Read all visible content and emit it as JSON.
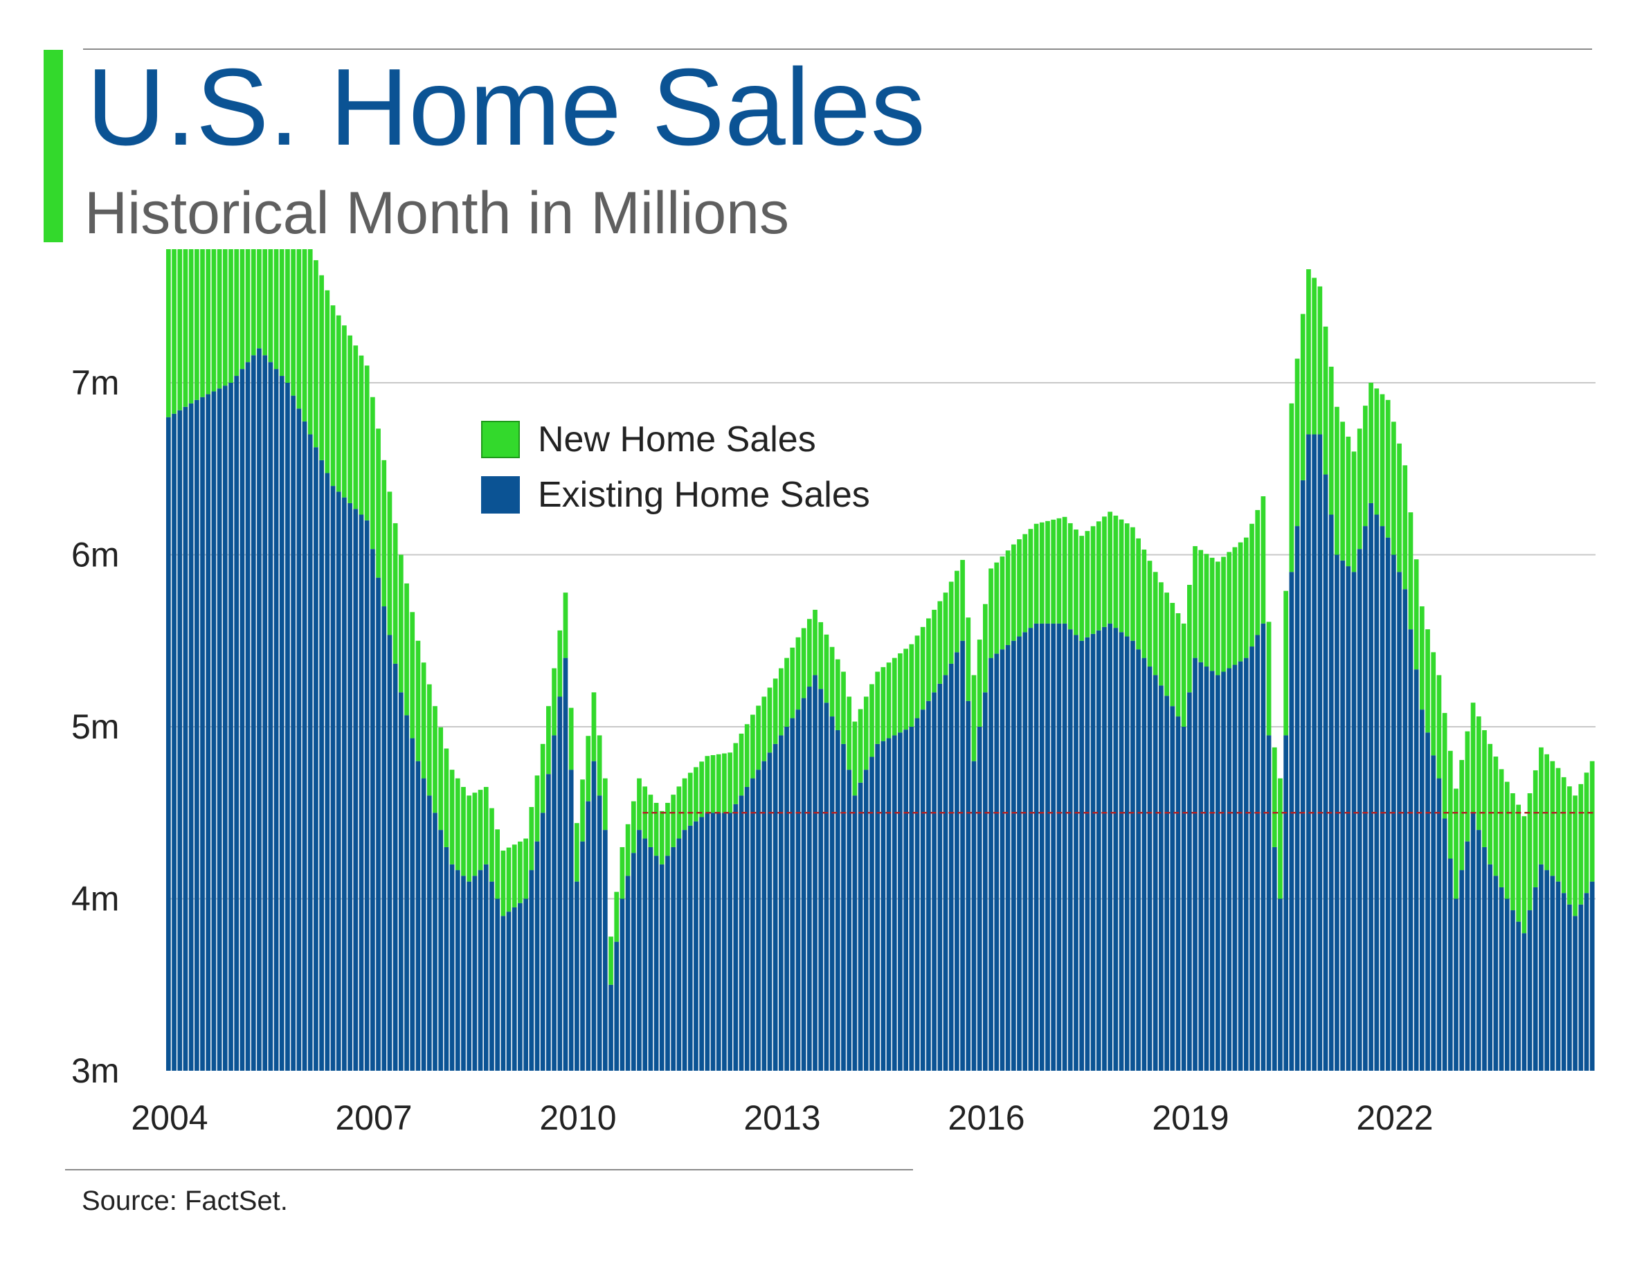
{
  "header": {
    "title": "U.S. Home Sales",
    "subtitle": "Historical Month in Millions"
  },
  "footer": {
    "source": "Source: FactSet."
  },
  "colors": {
    "new": "#33d92c",
    "existing": "#0b5394",
    "accent": "#33d92c",
    "grid": "#c8c8c8",
    "reference": "#b22222"
  },
  "chart_data": {
    "type": "bar",
    "stacked": true,
    "unit": "millions",
    "x_start": "2004-01",
    "x_end": "2024-12",
    "x_ticks": [
      "2004",
      "2007",
      "2010",
      "2013",
      "2016",
      "2019",
      "2022"
    ],
    "y_ticks": [
      "3m",
      "4m",
      "5m",
      "6m",
      "7m"
    ],
    "ylim": [
      3,
      7.8
    ],
    "legend": {
      "placement": "upper-center",
      "entries": [
        "New Home Sales",
        "Existing Home Sales"
      ]
    },
    "reference_line": {
      "value": 4.5,
      "from": "2011-01",
      "to": "2024-12"
    },
    "series_keypoints": {
      "existing": [
        [
          "2004-01",
          6.8
        ],
        [
          "2004-06",
          6.9
        ],
        [
          "2004-12",
          7.0
        ],
        [
          "2005-05",
          7.2
        ],
        [
          "2005-10",
          7.0
        ],
        [
          "2006-02",
          6.7
        ],
        [
          "2006-06",
          6.4
        ],
        [
          "2006-12",
          6.2
        ],
        [
          "2007-03",
          5.7
        ],
        [
          "2007-06",
          5.2
        ],
        [
          "2007-09",
          4.8
        ],
        [
          "2007-12",
          4.5
        ],
        [
          "2008-03",
          4.2
        ],
        [
          "2008-06",
          4.1
        ],
        [
          "2008-09",
          4.2
        ],
        [
          "2008-12",
          3.9
        ],
        [
          "2009-04",
          4.0
        ],
        [
          "2009-07",
          4.5
        ],
        [
          "2009-11",
          5.4
        ],
        [
          "2010-01",
          4.1
        ],
        [
          "2010-04",
          4.8
        ],
        [
          "2010-06",
          4.4
        ],
        [
          "2010-07",
          3.5
        ],
        [
          "2010-09",
          4.0
        ],
        [
          "2010-12",
          4.4
        ],
        [
          "2011-04",
          4.2
        ],
        [
          "2011-08",
          4.4
        ],
        [
          "2011-12",
          4.5
        ],
        [
          "2012-04",
          4.5
        ],
        [
          "2012-08",
          4.7
        ],
        [
          "2012-12",
          4.9
        ],
        [
          "2013-04",
          5.1
        ],
        [
          "2013-07",
          5.3
        ],
        [
          "2013-12",
          4.9
        ],
        [
          "2014-02",
          4.6
        ],
        [
          "2014-06",
          4.9
        ],
        [
          "2014-12",
          5.0
        ],
        [
          "2015-06",
          5.3
        ],
        [
          "2015-09",
          5.5
        ],
        [
          "2015-11",
          4.8
        ],
        [
          "2016-02",
          5.4
        ],
        [
          "2016-06",
          5.5
        ],
        [
          "2016-10",
          5.6
        ],
        [
          "2017-03",
          5.6
        ],
        [
          "2017-06",
          5.5
        ],
        [
          "2017-11",
          5.6
        ],
        [
          "2018-03",
          5.5
        ],
        [
          "2018-07",
          5.3
        ],
        [
          "2018-12",
          5.0
        ],
        [
          "2019-02",
          5.4
        ],
        [
          "2019-06",
          5.3
        ],
        [
          "2019-11",
          5.4
        ],
        [
          "2020-02",
          5.6
        ],
        [
          "2020-04",
          4.3
        ],
        [
          "2020-05",
          4.0
        ],
        [
          "2020-07",
          5.9
        ],
        [
          "2020-10",
          6.7
        ],
        [
          "2020-12",
          6.7
        ],
        [
          "2021-03",
          6.0
        ],
        [
          "2021-06",
          5.9
        ],
        [
          "2021-09",
          6.3
        ],
        [
          "2021-12",
          6.1
        ],
        [
          "2022-03",
          5.8
        ],
        [
          "2022-06",
          5.1
        ],
        [
          "2022-09",
          4.7
        ],
        [
          "2022-12",
          4.0
        ],
        [
          "2023-03",
          4.5
        ],
        [
          "2023-06",
          4.2
        ],
        [
          "2023-09",
          4.0
        ],
        [
          "2023-12",
          3.8
        ],
        [
          "2024-03",
          4.2
        ],
        [
          "2024-06",
          4.1
        ],
        [
          "2024-09",
          3.9
        ],
        [
          "2024-12",
          4.1
        ]
      ],
      "new": [
        [
          "2004-01",
          1.15
        ],
        [
          "2004-06",
          1.2
        ],
        [
          "2004-12",
          1.25
        ],
        [
          "2005-05",
          1.3
        ],
        [
          "2005-10",
          1.3
        ],
        [
          "2006-02",
          1.1
        ],
        [
          "2006-06",
          1.05
        ],
        [
          "2006-12",
          0.9
        ],
        [
          "2007-03",
          0.85
        ],
        [
          "2007-06",
          0.8
        ],
        [
          "2007-09",
          0.7
        ],
        [
          "2007-12",
          0.62
        ],
        [
          "2008-03",
          0.55
        ],
        [
          "2008-06",
          0.5
        ],
        [
          "2008-09",
          0.45
        ],
        [
          "2008-12",
          0.38
        ],
        [
          "2009-04",
          0.35
        ],
        [
          "2009-07",
          0.4
        ],
        [
          "2009-11",
          0.38
        ],
        [
          "2010-01",
          0.34
        ],
        [
          "2010-04",
          0.4
        ],
        [
          "2010-06",
          0.3
        ],
        [
          "2010-07",
          0.28
        ],
        [
          "2010-09",
          0.3
        ],
        [
          "2010-12",
          0.3
        ],
        [
          "2011-04",
          0.31
        ],
        [
          "2011-08",
          0.3
        ],
        [
          "2011-12",
          0.33
        ],
        [
          "2012-04",
          0.35
        ],
        [
          "2012-08",
          0.37
        ],
        [
          "2012-12",
          0.38
        ],
        [
          "2013-04",
          0.42
        ],
        [
          "2013-07",
          0.38
        ],
        [
          "2013-12",
          0.42
        ],
        [
          "2014-02",
          0.43
        ],
        [
          "2014-06",
          0.42
        ],
        [
          "2014-12",
          0.48
        ],
        [
          "2015-06",
          0.48
        ],
        [
          "2015-09",
          0.47
        ],
        [
          "2015-11",
          0.5
        ],
        [
          "2016-02",
          0.52
        ],
        [
          "2016-06",
          0.56
        ],
        [
          "2016-10",
          0.58
        ],
        [
          "2017-03",
          0.62
        ],
        [
          "2017-06",
          0.61
        ],
        [
          "2017-11",
          0.65
        ],
        [
          "2018-03",
          0.66
        ],
        [
          "2018-07",
          0.6
        ],
        [
          "2018-12",
          0.6
        ],
        [
          "2019-02",
          0.65
        ],
        [
          "2019-06",
          0.66
        ],
        [
          "2019-11",
          0.7
        ],
        [
          "2020-02",
          0.74
        ],
        [
          "2020-04",
          0.58
        ],
        [
          "2020-05",
          0.7
        ],
        [
          "2020-07",
          0.98
        ],
        [
          "2020-10",
          0.96
        ],
        [
          "2020-12",
          0.86
        ],
        [
          "2021-03",
          0.86
        ],
        [
          "2021-06",
          0.7
        ],
        [
          "2021-09",
          0.7
        ],
        [
          "2021-12",
          0.8
        ],
        [
          "2022-03",
          0.72
        ],
        [
          "2022-06",
          0.6
        ],
        [
          "2022-09",
          0.6
        ],
        [
          "2022-12",
          0.64
        ],
        [
          "2023-03",
          0.64
        ],
        [
          "2023-06",
          0.7
        ],
        [
          "2023-09",
          0.68
        ],
        [
          "2023-12",
          0.68
        ],
        [
          "2024-03",
          0.68
        ],
        [
          "2024-06",
          0.66
        ],
        [
          "2024-09",
          0.7
        ],
        [
          "2024-12",
          0.7
        ]
      ]
    }
  }
}
